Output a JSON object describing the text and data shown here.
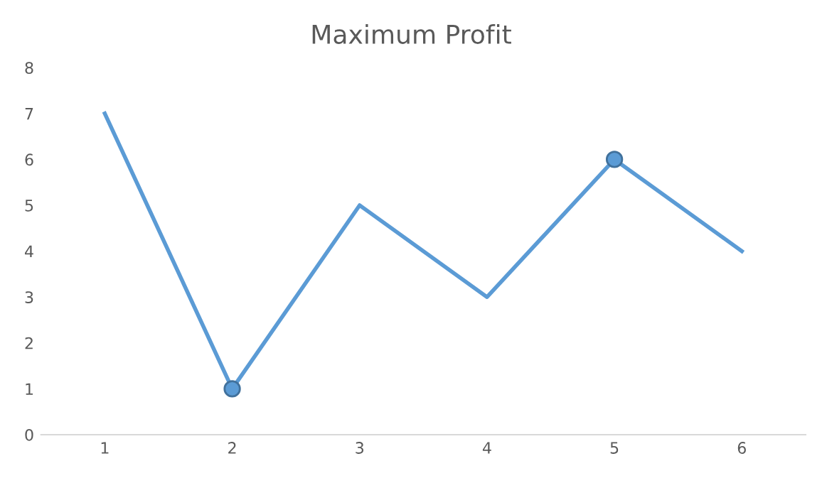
{
  "chart_data": {
    "type": "line",
    "title": "Maximum Profit",
    "categories": [
      "1",
      "2",
      "3",
      "4",
      "5",
      "6"
    ],
    "series": [
      {
        "color": "#5b9bd5",
        "values": [
          7,
          1,
          5,
          3,
          6,
          4
        ],
        "marker": "none"
      },
      {
        "type": "scatter",
        "color": "#5b9bd5",
        "x": [
          "2",
          "5"
        ],
        "values": [
          1,
          6
        ],
        "marker": "circle"
      }
    ],
    "ylim": [
      0,
      8
    ],
    "yticks": [
      0,
      1,
      2,
      3,
      4,
      5,
      6,
      7,
      8
    ],
    "grid": false,
    "legend": false
  }
}
